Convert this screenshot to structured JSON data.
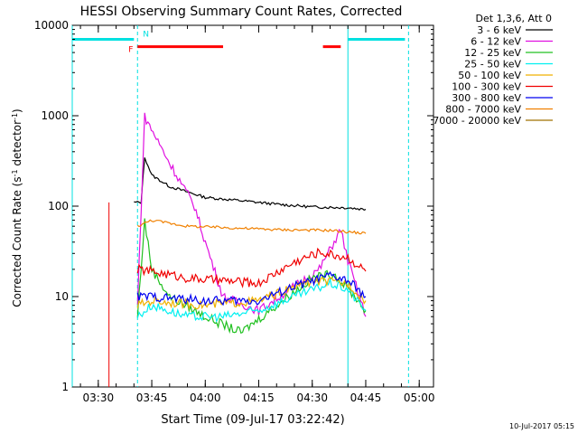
{
  "chart_data": {
    "type": "line",
    "title": "HESSI Observing Summary Count Rates, Corrected",
    "xlabel": "Start Time (09-Jul-17 03:22:42)",
    "ylabel_main": "Corrected Count Rate (s",
    "ylabel_sup1": "-1",
    "ylabel_mid": " detector",
    "ylabel_sup2": "-1",
    "ylabel_end": ")",
    "x_unit": "minutes",
    "x_axis_origin": "03:22:42",
    "xlim": [
      "03:22:42",
      "05:04:00"
    ],
    "ylim": [
      1,
      10000
    ],
    "yscale": "log",
    "xticks": [
      "03:30",
      "03:45",
      "04:00",
      "04:15",
      "04:30",
      "04:45",
      "05:00"
    ],
    "yticks": [
      "1",
      "10",
      "100",
      "1000",
      "10000"
    ],
    "grid": false,
    "legend_position": "right",
    "legend_header": "Det 1,3,6, Att 0",
    "series": [
      {
        "name": "3 - 6 keV",
        "color": "#000000",
        "points": [
          [
            "03:40",
            110
          ],
          [
            "03:42",
            110
          ],
          [
            "03:43",
            350
          ],
          [
            "03:45",
            220
          ],
          [
            "03:50",
            165
          ],
          [
            "04:00",
            125
          ],
          [
            "04:10",
            115
          ],
          [
            "04:20",
            105
          ],
          [
            "04:30",
            98
          ],
          [
            "04:40",
            96
          ],
          [
            "04:45",
            92
          ]
        ]
      },
      {
        "name": "6 - 12 keV",
        "color": "#e010e0",
        "points": [
          [
            "03:41",
            8
          ],
          [
            "03:43",
            980
          ],
          [
            "03:50",
            300
          ],
          [
            "03:57",
            100
          ],
          [
            "04:00",
            40
          ],
          [
            "04:05",
            10
          ],
          [
            "04:15",
            7
          ],
          [
            "04:25",
            13
          ],
          [
            "04:32",
            20
          ],
          [
            "04:38",
            55
          ],
          [
            "04:40",
            25
          ],
          [
            "04:45",
            6
          ]
        ]
      },
      {
        "name": "12 - 25 keV",
        "color": "#20c020",
        "points": [
          [
            "03:41",
            6
          ],
          [
            "03:43",
            70
          ],
          [
            "03:45",
            20
          ],
          [
            "03:50",
            10
          ],
          [
            "04:00",
            6
          ],
          [
            "04:10",
            4
          ],
          [
            "04:20",
            8
          ],
          [
            "04:30",
            16
          ],
          [
            "04:36",
            18
          ],
          [
            "04:42",
            10
          ],
          [
            "04:45",
            7
          ]
        ]
      },
      {
        "name": "25 - 50 keV",
        "color": "#00f0f0",
        "points": [
          [
            "03:41",
            6
          ],
          [
            "03:45",
            8
          ],
          [
            "03:55",
            6
          ],
          [
            "04:05",
            6
          ],
          [
            "04:15",
            7
          ],
          [
            "04:25",
            10
          ],
          [
            "04:35",
            14
          ],
          [
            "04:40",
            12
          ],
          [
            "04:45",
            7
          ]
        ]
      },
      {
        "name": "50 - 100 keV",
        "color": "#f0b000",
        "points": [
          [
            "03:41",
            8
          ],
          [
            "03:45",
            9
          ],
          [
            "04:00",
            8
          ],
          [
            "04:15",
            9
          ],
          [
            "04:30",
            15
          ],
          [
            "04:40",
            14
          ],
          [
            "04:45",
            9
          ]
        ]
      },
      {
        "name": "100 - 300 keV",
        "color": "#f00000",
        "points": [
          [
            "03:41",
            20
          ],
          [
            "03:45",
            19
          ],
          [
            "03:55",
            16
          ],
          [
            "04:05",
            15
          ],
          [
            "04:15",
            14
          ],
          [
            "04:25",
            24
          ],
          [
            "04:32",
            31
          ],
          [
            "04:40",
            27
          ],
          [
            "04:45",
            19
          ]
        ]
      },
      {
        "name": "300 - 800 keV",
        "color": "#0000f0",
        "points": [
          [
            "03:41",
            10
          ],
          [
            "03:45",
            10
          ],
          [
            "04:00",
            9
          ],
          [
            "04:15",
            9
          ],
          [
            "04:25",
            13
          ],
          [
            "04:35",
            17
          ],
          [
            "04:40",
            15
          ],
          [
            "04:45",
            10
          ]
        ]
      },
      {
        "name": "800 - 7000 keV",
        "color": "#f08000",
        "points": [
          [
            "03:41",
            60
          ],
          [
            "03:45",
            70
          ],
          [
            "03:55",
            60
          ],
          [
            "04:05",
            58
          ],
          [
            "04:20",
            55
          ],
          [
            "04:35",
            54
          ],
          [
            "04:45",
            50
          ]
        ]
      },
      {
        "name": "7000 - 20000 keV",
        "color": "#a07000",
        "points": []
      }
    ],
    "flags": [
      {
        "label": "",
        "color": "#00e0e0",
        "start": "03:22:42",
        "end": "03:40",
        "y": 7000
      },
      {
        "label": "",
        "color": "#00e0e0",
        "start": "04:40",
        "end": "04:56",
        "y": 7000
      },
      {
        "label": "F",
        "color": "#ff0000",
        "start": "03:41",
        "end": "04:05",
        "y": 5800
      },
      {
        "label": "",
        "color": "#ff0000",
        "start": "04:33",
        "end": "04:38",
        "y": 5800
      },
      {
        "label": "N",
        "color": "#00e0e0",
        "start": "03:41",
        "end": "03:41",
        "y": 7000
      }
    ],
    "vlines": [
      {
        "time": "03:22:42",
        "style": "solid",
        "color": "#00e0e0"
      },
      {
        "time": "03:41",
        "style": "dashed",
        "color": "#00e0e0"
      },
      {
        "time": "04:40",
        "style": "solid",
        "color": "#00e0e0"
      },
      {
        "time": "04:57",
        "style": "dashed",
        "color": "#00e0e0"
      }
    ],
    "data_start": "03:33"
  },
  "footer": "10-Jul-2017 05:15"
}
